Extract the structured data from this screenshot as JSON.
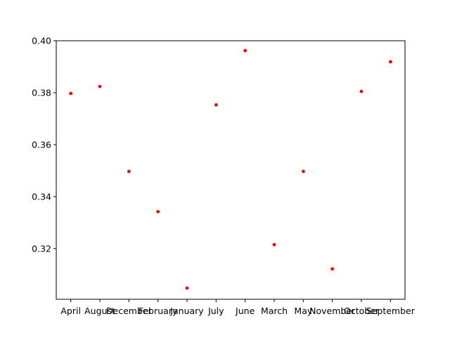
{
  "chart_data": {
    "type": "scatter",
    "title": "",
    "xlabel": "",
    "ylabel": "",
    "categories": [
      "April",
      "August",
      "December",
      "February",
      "January",
      "July",
      "June",
      "March",
      "May",
      "November",
      "October",
      "September"
    ],
    "series": [
      {
        "values": [
          0.3797,
          0.3824,
          0.3497,
          0.3342,
          0.3048,
          0.3753,
          0.3962,
          0.3215,
          0.3497,
          0.3122,
          0.3805,
          0.3919
        ],
        "color": "#ff0000",
        "marker": "point"
      }
    ],
    "ylim": [
      0.3005,
      0.4
    ],
    "yticks": [
      0.32,
      0.34,
      0.36,
      0.38,
      0.4
    ],
    "ytick_labels": [
      "0.32",
      "0.34",
      "0.36",
      "0.38",
      "0.40"
    ],
    "grid": false,
    "legend": "none"
  }
}
